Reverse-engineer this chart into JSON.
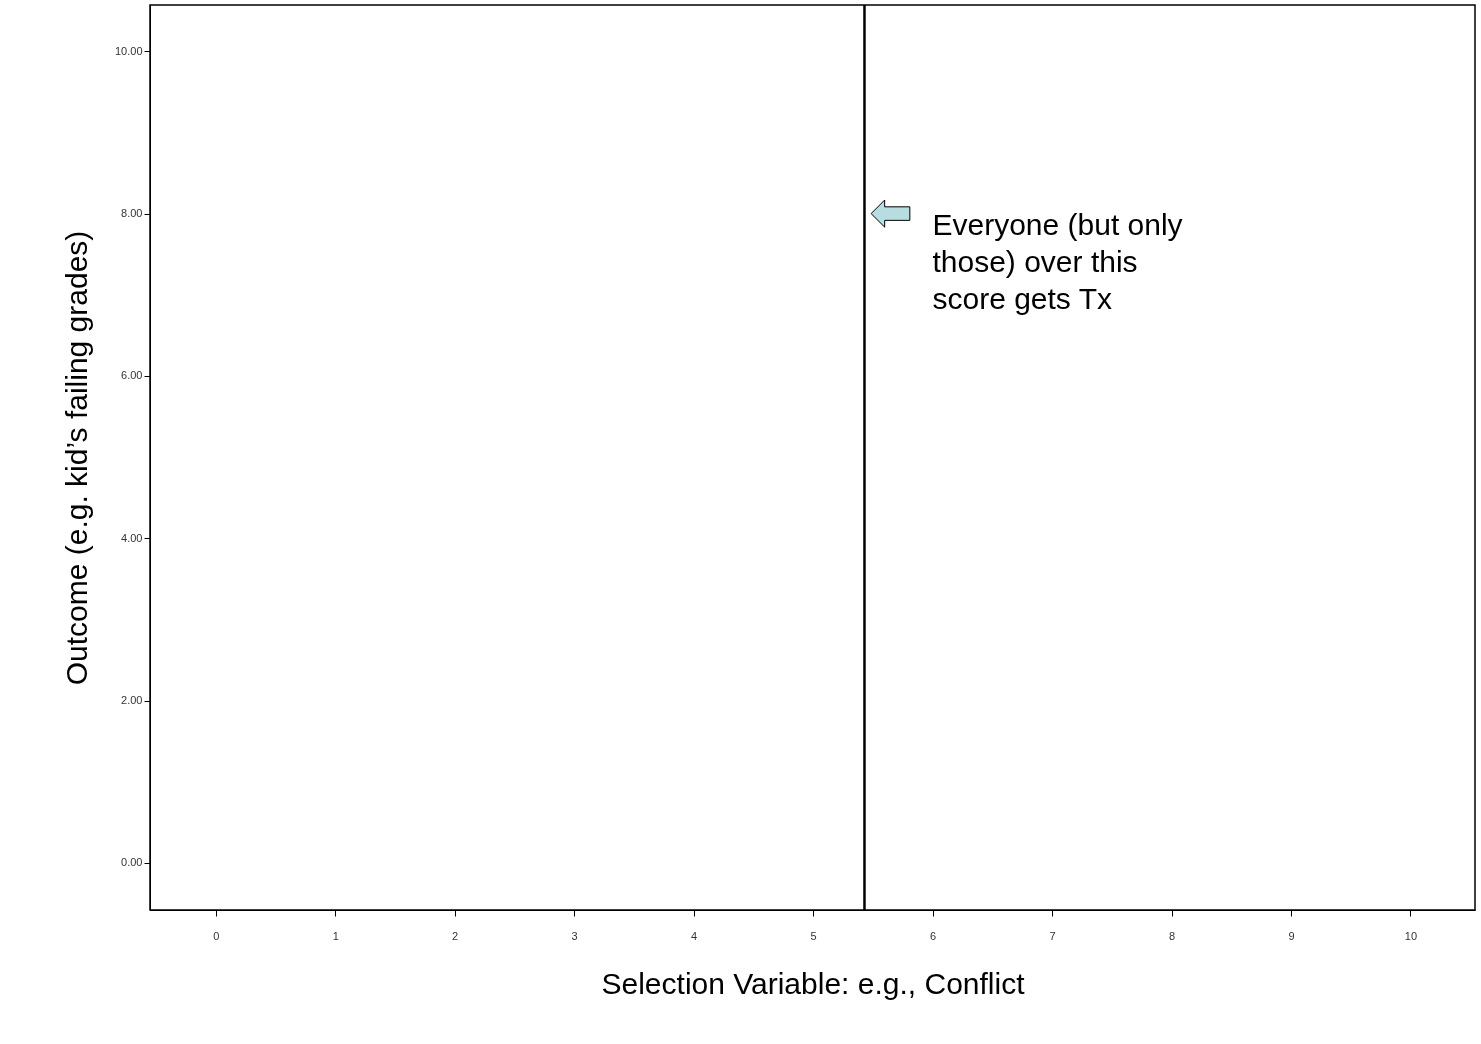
{
  "chart_data": {
    "type": "scatter",
    "xlabel": "Selection Variable: e.g., Conflict",
    "ylabel": "Outcome (e.g. kid’s failing grades)",
    "xlim": [
      -0.55,
      10.54
    ],
    "ylim": [
      -0.58,
      10.57
    ],
    "xticks": [
      0,
      1,
      2,
      3,
      4,
      5,
      6,
      7,
      8,
      9,
      10
    ],
    "yticks": [
      {
        "value": 0,
        "label": "0.00"
      },
      {
        "value": 2,
        "label": "2.00"
      },
      {
        "value": 4,
        "label": "4.00"
      },
      {
        "value": 6,
        "label": "6.00"
      },
      {
        "value": 8,
        "label": "8.00"
      },
      {
        "value": 10,
        "label": "10.00"
      }
    ],
    "ref_lines": [
      {
        "axis": "x",
        "value": 5.43,
        "color": "#000000"
      }
    ],
    "annotations": [
      {
        "text": "Everyone (but only those) over this score gets Tx",
        "x": 5.43,
        "y": 8.0
      }
    ]
  }
}
